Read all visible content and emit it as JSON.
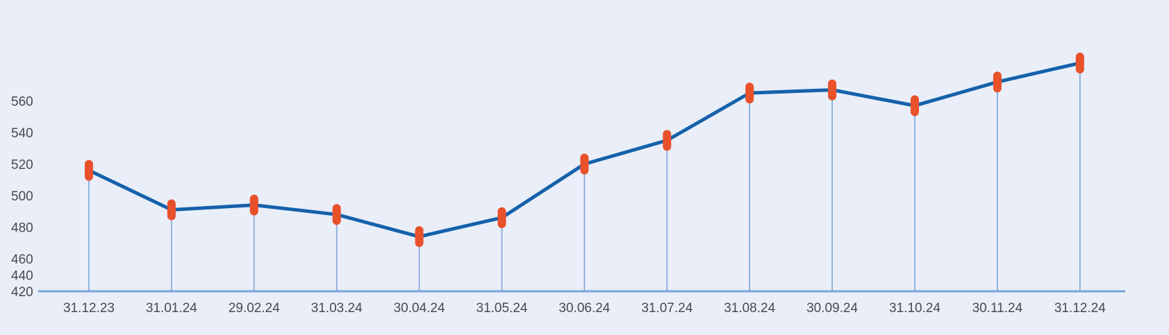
{
  "chart_data": {
    "type": "line",
    "categories": [
      "31.12.23",
      "31.01.24",
      "29.02.24",
      "31.03.24",
      "30.04.24",
      "31.05.24",
      "30.06.24",
      "31.07.24",
      "31.08.24",
      "30.09.24",
      "31.10.24",
      "30.11.24",
      "31.12.24"
    ],
    "series": [
      {
        "values": [
          516,
          491,
          494,
          488,
          474,
          486,
          520,
          535,
          565,
          567,
          557,
          572,
          584
        ]
      }
    ],
    "y_ticks": [
      420,
      440,
      460,
      480,
      500,
      520,
      540,
      560
    ],
    "ylim": [
      420,
      590
    ],
    "title": "",
    "xlabel": "",
    "ylabel": "",
    "grid": false,
    "drop_lines": true,
    "colors": {
      "background": "#e9eef8",
      "line": "#1561ab",
      "marker": "#e9512b",
      "drop_line": "#7ba3d8",
      "axis": "#7ba3d8",
      "tick_text": "#444a52"
    }
  }
}
